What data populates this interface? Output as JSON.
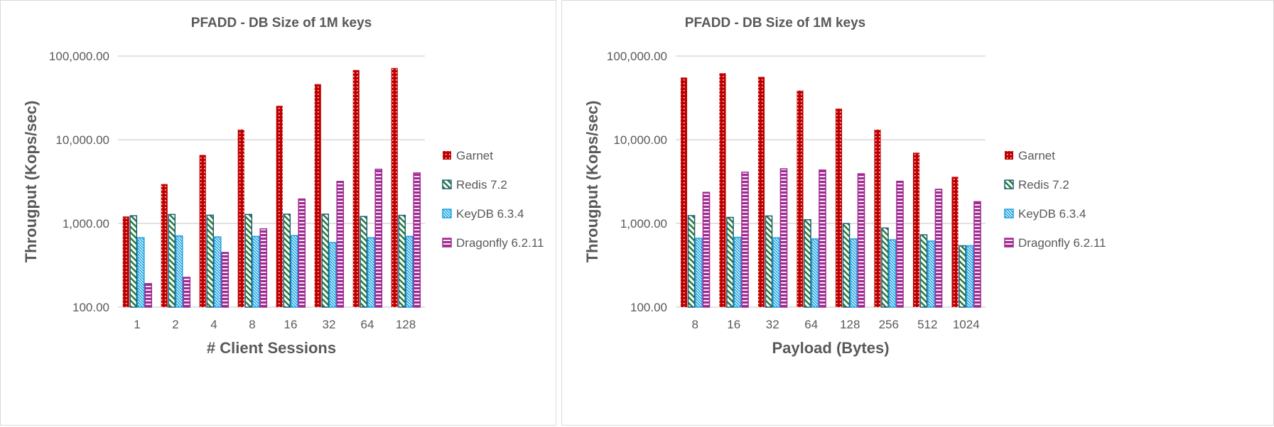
{
  "colors": {
    "Garnet": "#C00000",
    "Redis 7.2": "#1E7B34",
    "KeyDB 6.3.4": "#1BA1E2",
    "Dragonfly 6.2.11": "#A12A92",
    "grid": "#d9d9d9",
    "text": "#595959"
  },
  "chart_data": [
    {
      "type": "bar",
      "title": "PFADD - DB Size of 1M  keys",
      "xlabel": "# Client Sessions",
      "ylabel": "Througput (Kops/sec)",
      "yscale": "log",
      "ylim": [
        100,
        100000
      ],
      "yticks": [
        "100.00",
        "1,000.00",
        "10,000.00",
        "100,000.00"
      ],
      "grid": true,
      "legend": "right",
      "categories": [
        "1",
        "2",
        "4",
        "8",
        "16",
        "32",
        "64",
        "128"
      ],
      "series": [
        {
          "name": "Garnet",
          "pattern": "dots",
          "values": [
            1210,
            2950,
            6580,
            13250,
            25400,
            46100,
            68000,
            71900
          ]
        },
        {
          "name": "Redis 7.2",
          "pattern": "diagonal-stripes",
          "values": [
            1235,
            1280,
            1255,
            1280,
            1290,
            1290,
            1210,
            1250
          ]
        },
        {
          "name": "KeyDB 6.3.4",
          "pattern": "diagonal-stripes",
          "values": [
            675,
            710,
            690,
            700,
            715,
            590,
            675,
            700
          ]
        },
        {
          "name": "Dragonfly 6.2.11",
          "pattern": "horizontal-stripes",
          "values": [
            191,
            227,
            450,
            862,
            1960,
            3180,
            4440,
            4010
          ]
        }
      ]
    },
    {
      "type": "bar",
      "title": "PFADD - DB Size of 1M  keys",
      "xlabel": "Payload (Bytes)",
      "ylabel": "Througput (Kops/sec)",
      "yscale": "log",
      "ylim": [
        100,
        100000
      ],
      "yticks": [
        "100.00",
        "1,000.00",
        "10,000.00",
        "100,000.00"
      ],
      "grid": true,
      "legend": "right",
      "categories": [
        "8",
        "16",
        "32",
        "64",
        "128",
        "256",
        "512",
        "1024"
      ],
      "series": [
        {
          "name": "Garnet",
          "pattern": "dots",
          "values": [
            55300,
            62300,
            56300,
            38700,
            23550,
            13200,
            7000,
            3600
          ]
        },
        {
          "name": "Redis 7.2",
          "pattern": "diagonal-stripes",
          "values": [
            1240,
            1180,
            1228,
            1108,
            995,
            882,
            731,
            541
          ]
        },
        {
          "name": "KeyDB 6.3.4",
          "pattern": "diagonal-stripes",
          "values": [
            664,
            683,
            673,
            653,
            653,
            638,
            616,
            541
          ]
        },
        {
          "name": "Dragonfly 6.2.11",
          "pattern": "horizontal-stripes",
          "values": [
            2350,
            4100,
            4500,
            4345,
            3920,
            3190,
            2560,
            1820
          ]
        }
      ]
    }
  ]
}
